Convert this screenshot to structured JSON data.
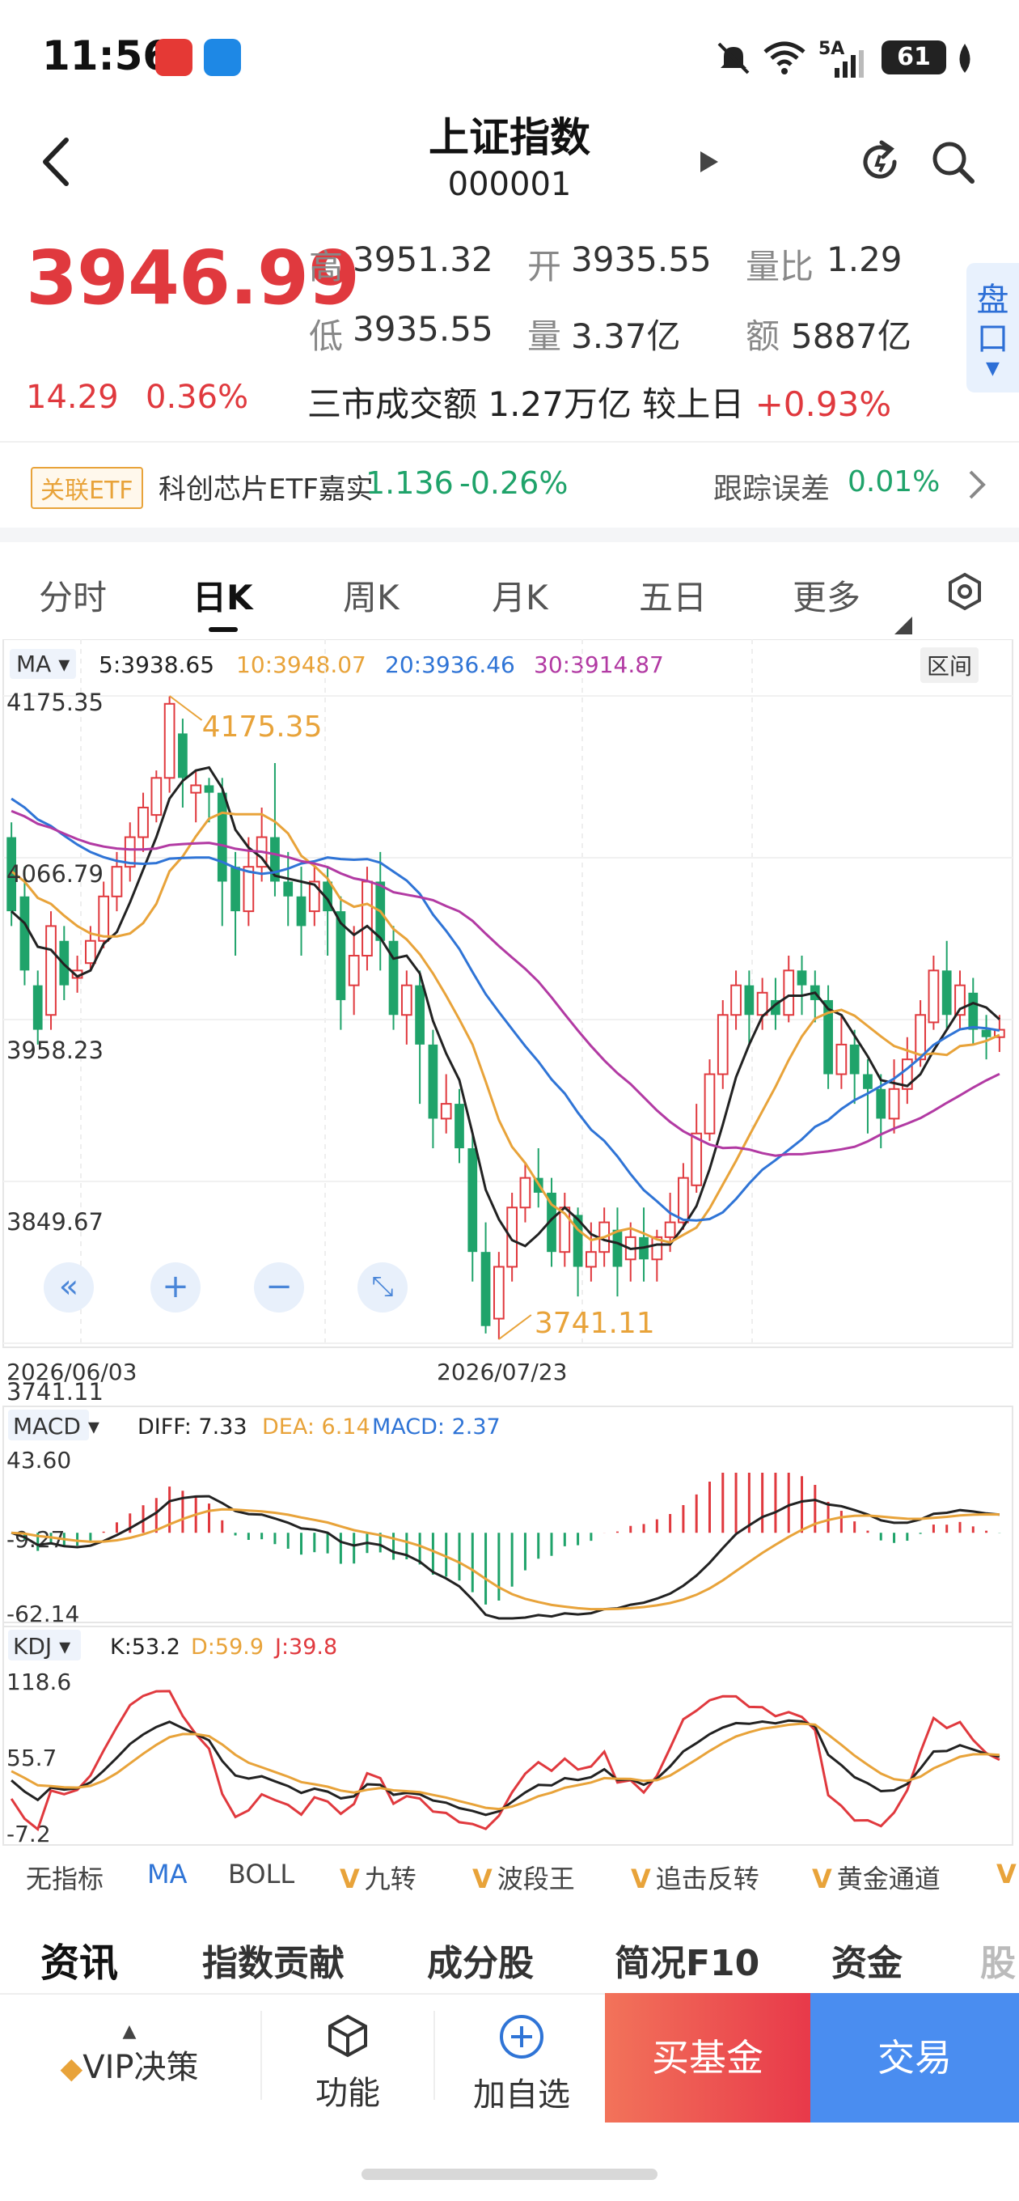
{
  "status_bar": {
    "time": "11:56",
    "battery": "61",
    "network": "5A"
  },
  "header": {
    "title": "上证指数",
    "code": "000001"
  },
  "quote": {
    "price": "3946.99",
    "change": "14.29",
    "change_pct": "0.36%",
    "high_label": "高",
    "high": "3951.32",
    "open_label": "开",
    "open": "3935.55",
    "ratio_label": "量比",
    "ratio": "1.29",
    "low_label": "低",
    "low": "3935.55",
    "volume_label": "量",
    "volume": "3.37亿",
    "amount_label": "额",
    "amount": "5887亿",
    "turnover_text": "三市成交额 1.27万亿  较上日",
    "turnover_change": "+0.93%",
    "pankou": [
      "盘",
      "口"
    ]
  },
  "etf": {
    "tag": "关联ETF",
    "name": "科创芯片ETF嘉实",
    "price": "1.136",
    "change": "-0.26%",
    "tracking_label": "跟踪误差",
    "tracking_value": "0.01%"
  },
  "period_tabs": [
    "分时",
    "日K",
    "周K",
    "月K",
    "五日",
    "更多"
  ],
  "active_period": "日K",
  "ma_bar": {
    "selector": "MA",
    "ma5": "5:3938.65",
    "ma10": "10:3948.07",
    "ma20": "20:3936.46",
    "ma30": "30:3914.87",
    "range_button": "区间"
  },
  "colors": {
    "up": "#e0393e",
    "down": "#1fa36a",
    "ma5": "#222222",
    "ma10": "#e8a33a",
    "ma20": "#2f74d6",
    "ma30": "#b23aa3"
  },
  "kline": {
    "y_ticks": [
      "4175.35",
      "4066.79",
      "3958.23",
      "3849.67",
      "3741.11"
    ],
    "high_marker": "4175.35",
    "low_marker": "3741.11",
    "date_start": "2026/06/03",
    "date_mid": "2026/07/23",
    "candles": [
      [
        4080,
        4030,
        4090,
        4020
      ],
      [
        4040,
        3990,
        4060,
        3980
      ],
      [
        3980,
        3950,
        3990,
        3940
      ],
      [
        3960,
        4020,
        4030,
        3950
      ],
      [
        4010,
        3980,
        4020,
        3970
      ],
      [
        3985,
        3990,
        4000,
        3975
      ],
      [
        3995,
        4010,
        4020,
        3990
      ],
      [
        4010,
        4040,
        4050,
        4005
      ],
      [
        4040,
        4060,
        4070,
        4030
      ],
      [
        4060,
        4080,
        4090,
        4050
      ],
      [
        4080,
        4100,
        4110,
        4070
      ],
      [
        4095,
        4120,
        4125,
        4090
      ],
      [
        4120,
        4170,
        4175,
        4110
      ],
      [
        4150,
        4120,
        4160,
        4100
      ],
      [
        4110,
        4115,
        4125,
        4090
      ],
      [
        4115,
        4110,
        4120,
        4090
      ],
      [
        4110,
        4050,
        4120,
        4020
      ],
      [
        4060,
        4030,
        4070,
        4000
      ],
      [
        4030,
        4060,
        4080,
        4020
      ],
      [
        4060,
        4080,
        4100,
        4050
      ],
      [
        4080,
        4050,
        4130,
        4040
      ],
      [
        4050,
        4040,
        4070,
        4020
      ],
      [
        4040,
        4020,
        4060,
        4000
      ],
      [
        4030,
        4050,
        4060,
        4020
      ],
      [
        4050,
        4030,
        4060,
        4000
      ],
      [
        4030,
        3970,
        4040,
        3950
      ],
      [
        3980,
        4000,
        4020,
        3960
      ],
      [
        4000,
        4050,
        4060,
        3990
      ],
      [
        4050,
        4010,
        4070,
        3990
      ],
      [
        4010,
        3960,
        4020,
        3950
      ],
      [
        3960,
        3980,
        3990,
        3940
      ],
      [
        3980,
        3940,
        3990,
        3900
      ],
      [
        3940,
        3890,
        3950,
        3870
      ],
      [
        3890,
        3900,
        3920,
        3880
      ],
      [
        3900,
        3870,
        3910,
        3860
      ],
      [
        3870,
        3800,
        3880,
        3780
      ],
      [
        3800,
        3750,
        3820,
        3745
      ],
      [
        3755,
        3790,
        3800,
        3741
      ],
      [
        3790,
        3830,
        3840,
        3780
      ],
      [
        3830,
        3850,
        3860,
        3820
      ],
      [
        3850,
        3840,
        3870,
        3830
      ],
      [
        3840,
        3800,
        3850,
        3790
      ],
      [
        3800,
        3830,
        3840,
        3790
      ],
      [
        3825,
        3790,
        3830,
        3770
      ],
      [
        3790,
        3800,
        3820,
        3780
      ],
      [
        3800,
        3820,
        3830,
        3790
      ],
      [
        3815,
        3790,
        3830,
        3770
      ],
      [
        3795,
        3810,
        3820,
        3780
      ],
      [
        3810,
        3795,
        3830,
        3780
      ],
      [
        3795,
        3810,
        3815,
        3780
      ],
      [
        3810,
        3820,
        3840,
        3800
      ],
      [
        3820,
        3850,
        3860,
        3815
      ],
      [
        3845,
        3880,
        3900,
        3840
      ],
      [
        3880,
        3920,
        3930,
        3875
      ],
      [
        3920,
        3960,
        3970,
        3910
      ],
      [
        3960,
        3980,
        3990,
        3950
      ],
      [
        3980,
        3960,
        3990,
        3940
      ],
      [
        3960,
        3975,
        3985,
        3950
      ],
      [
        3970,
        3960,
        3985,
        3950
      ],
      [
        3960,
        3990,
        4000,
        3955
      ],
      [
        3990,
        3980,
        4000,
        3960
      ],
      [
        3980,
        3970,
        3990,
        3955
      ],
      [
        3970,
        3920,
        3980,
        3910
      ],
      [
        3920,
        3940,
        3960,
        3910
      ],
      [
        3940,
        3920,
        3950,
        3900
      ],
      [
        3920,
        3910,
        3930,
        3880
      ],
      [
        3910,
        3890,
        3920,
        3870
      ],
      [
        3890,
        3910,
        3930,
        3880
      ],
      [
        3910,
        3930,
        3945,
        3900
      ],
      [
        3930,
        3960,
        3970,
        3925
      ],
      [
        3955,
        3990,
        4000,
        3950
      ],
      [
        3990,
        3960,
        4010,
        3950
      ],
      [
        3960,
        3980,
        3990,
        3950
      ],
      [
        3975,
        3950,
        3985,
        3940
      ],
      [
        3950,
        3945,
        3960,
        3930
      ],
      [
        3945,
        3950,
        3960,
        3935
      ]
    ]
  },
  "macd": {
    "selector": "MACD",
    "diff": "DIFF: 7.33",
    "dea": "DEA: 6.14",
    "macd": "MACD: 2.37",
    "y_ticks": [
      "43.60",
      "-9.27",
      "-62.14"
    ]
  },
  "kdj": {
    "selector": "KDJ",
    "k": "K:53.2",
    "d": "D:59.9",
    "j": "J:39.8",
    "y_ticks": [
      "118.6",
      "55.7",
      "-7.2"
    ]
  },
  "indicator_row": [
    "无指标",
    "MA",
    "BOLL",
    "九转",
    "波段王",
    "追击反转",
    "黄金通道"
  ],
  "info_tabs": [
    "资讯",
    "指数贡献",
    "成分股",
    "简况F10",
    "资金",
    "股"
  ],
  "bottom_bar": {
    "vip": "VIP决策",
    "func": "功能",
    "add": "加自选",
    "buy": "买基金",
    "trade": "交易"
  }
}
